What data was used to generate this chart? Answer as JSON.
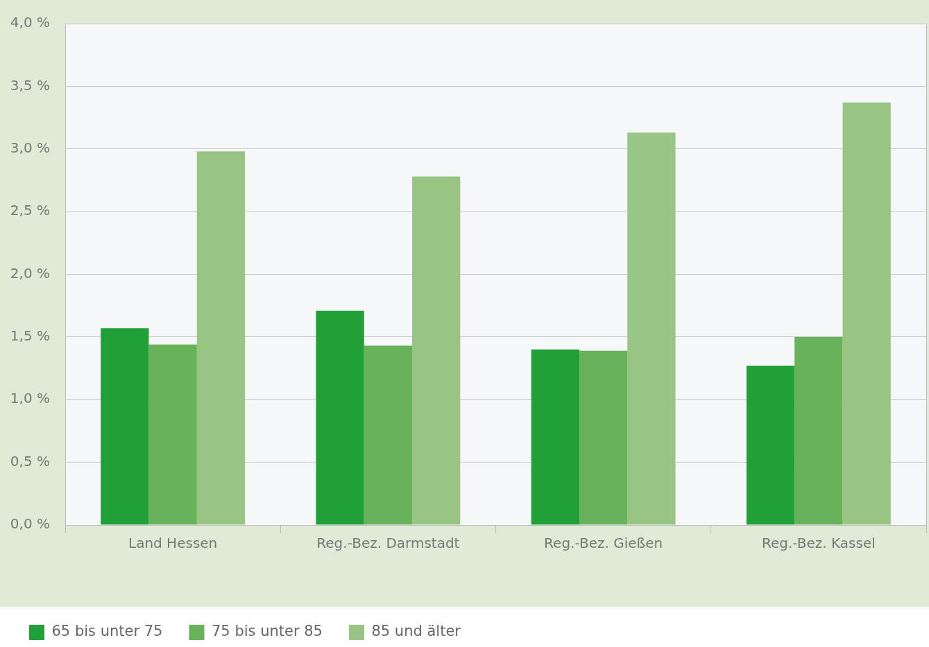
{
  "chart_data": {
    "type": "bar",
    "categories": [
      "Land Hessen",
      "Reg.-Bez. Darmstadt",
      "Reg.-Bez. Gießen",
      "Reg.-Bez. Kassel"
    ],
    "series": [
      {
        "name": "65 bis unter 75",
        "color": "#22a038",
        "values": [
          1.57,
          1.71,
          1.4,
          1.27
        ]
      },
      {
        "name": "75 bis unter 85",
        "color": "#68b25a",
        "values": [
          1.44,
          1.43,
          1.39,
          1.5
        ]
      },
      {
        "name": "85 und älter",
        "color": "#98c584",
        "values": [
          2.98,
          2.78,
          3.13,
          3.37
        ]
      }
    ],
    "ylim": [
      0,
      4
    ],
    "yticks": [
      {
        "value": 0,
        "label": "0,0 %"
      },
      {
        "value": 0.5,
        "label": "0,5 %"
      },
      {
        "value": 1,
        "label": "1,0 %"
      },
      {
        "value": 1.5,
        "label": "1,5 %"
      },
      {
        "value": 2,
        "label": "2,0 %"
      },
      {
        "value": 2.5,
        "label": "2,5 %"
      },
      {
        "value": 3,
        "label": "3,0 %"
      },
      {
        "value": 3.5,
        "label": "3,5 %"
      },
      {
        "value": 4,
        "label": "4,0 %"
      }
    ],
    "grid": "y",
    "legend": "bottom left"
  }
}
